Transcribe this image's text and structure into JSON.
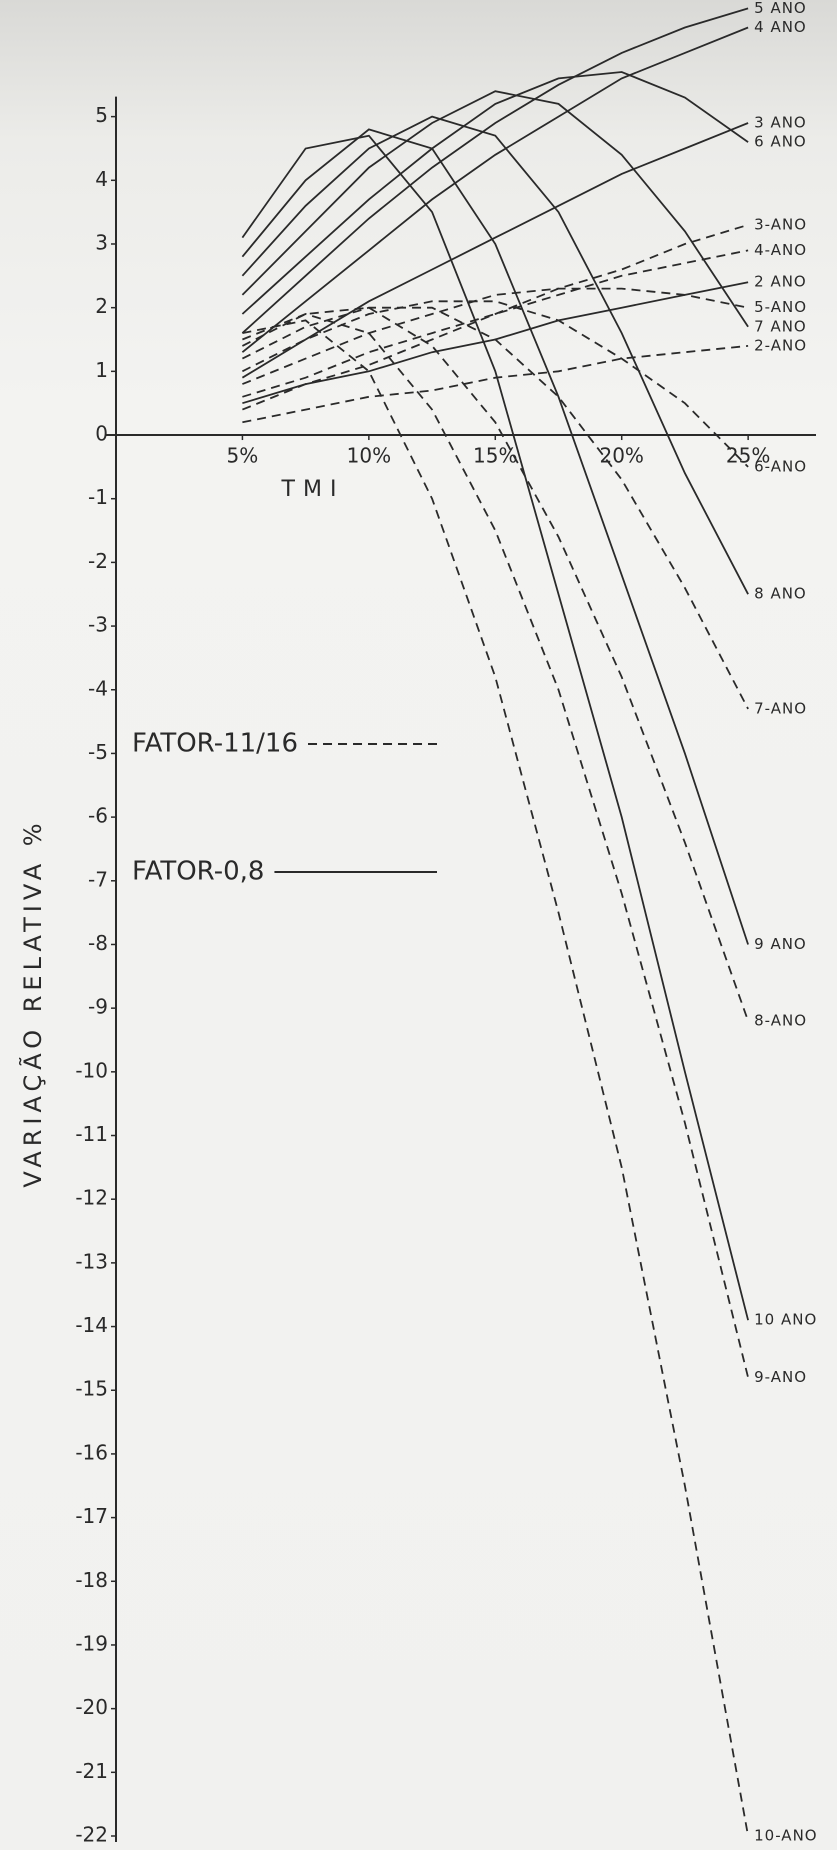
{
  "chart_data": {
    "type": "line",
    "xlabel": "TMI",
    "ylabel": "VARIAÇÃO RELATIVA %",
    "color": "#2a2a2a",
    "xlim": [
      0,
      28
    ],
    "ylim": [
      -22,
      6.8
    ],
    "xticks": [
      {
        "value": 5,
        "label": "5%"
      },
      {
        "value": 10,
        "label": "10%"
      },
      {
        "value": 15,
        "label": "15%"
      },
      {
        "value": 20,
        "label": "20%"
      },
      {
        "value": 25,
        "label": "25%"
      }
    ],
    "yticks": [
      5,
      4,
      3,
      2,
      1,
      0,
      -1,
      -2,
      -3,
      -4,
      -5,
      -6,
      -7,
      -8,
      -9,
      -10,
      -11,
      -12,
      -13,
      -14,
      -15,
      -16,
      -17,
      -18,
      -19,
      -20,
      -21,
      -22
    ],
    "legend": [
      {
        "label": "FATOR-11/16",
        "style": "dashed"
      },
      {
        "label": "FATOR-0,8",
        "style": "solid"
      }
    ],
    "x": [
      5,
      7.5,
      10,
      12.5,
      15,
      17.5,
      20,
      22.5,
      25
    ],
    "series": [
      {
        "name": "5 ANO",
        "style": "solid",
        "values": [
          1.6,
          2.5,
          3.4,
          4.2,
          4.9,
          5.5,
          6.0,
          6.4,
          6.7
        ]
      },
      {
        "name": "4 ANO",
        "style": "solid",
        "values": [
          1.3,
          2.1,
          2.9,
          3.7,
          4.4,
          5.0,
          5.6,
          6.0,
          6.4
        ]
      },
      {
        "name": "3 ANO",
        "style": "solid",
        "values": [
          0.9,
          1.5,
          2.1,
          2.6,
          3.1,
          3.6,
          4.1,
          4.5,
          4.9
        ]
      },
      {
        "name": "6 ANO",
        "style": "solid",
        "values": [
          1.9,
          2.8,
          3.7,
          4.5,
          5.2,
          5.6,
          5.7,
          5.3,
          4.6
        ]
      },
      {
        "name": "2 ANO",
        "style": "solid",
        "values": [
          0.5,
          0.8,
          1.0,
          1.3,
          1.5,
          1.8,
          2.0,
          2.2,
          2.4
        ]
      },
      {
        "name": "7 ANO",
        "style": "solid",
        "values": [
          2.2,
          3.2,
          4.2,
          4.9,
          5.4,
          5.2,
          4.4,
          3.2,
          1.7
        ]
      },
      {
        "name": "8 ANO",
        "style": "solid",
        "values": [
          2.5,
          3.6,
          4.5,
          5.0,
          4.7,
          3.5,
          1.6,
          -0.6,
          -2.5
        ]
      },
      {
        "name": "9 ANO",
        "style": "solid",
        "values": [
          2.8,
          4.0,
          4.8,
          4.5,
          3.0,
          0.6,
          -2.2,
          -5.0,
          -8.0
        ]
      },
      {
        "name": "10 ANO",
        "style": "solid",
        "values": [
          3.1,
          4.5,
          4.7,
          3.5,
          1.0,
          -2.5,
          -6.0,
          -10.0,
          -13.9
        ]
      },
      {
        "name": "3-ANO",
        "style": "dashed",
        "values": [
          0.4,
          0.8,
          1.1,
          1.5,
          1.9,
          2.3,
          2.6,
          3.0,
          3.3
        ]
      },
      {
        "name": "4-ANO",
        "style": "dashed",
        "values": [
          0.6,
          0.9,
          1.3,
          1.6,
          1.9,
          2.2,
          2.5,
          2.7,
          2.9
        ]
      },
      {
        "name": "5-ANO",
        "style": "dashed",
        "values": [
          0.8,
          1.2,
          1.6,
          1.9,
          2.2,
          2.3,
          2.3,
          2.2,
          2.0
        ]
      },
      {
        "name": "2-ANO",
        "style": "dashed",
        "values": [
          0.2,
          0.4,
          0.6,
          0.7,
          0.9,
          1.0,
          1.2,
          1.3,
          1.4
        ]
      },
      {
        "name": "6-ANO",
        "style": "dashed",
        "values": [
          1.0,
          1.5,
          1.9,
          2.1,
          2.1,
          1.8,
          1.2,
          0.5,
          -0.5
        ]
      },
      {
        "name": "7-ANO",
        "style": "dashed",
        "values": [
          1.2,
          1.7,
          2.0,
          2.0,
          1.5,
          0.6,
          -0.7,
          -2.4,
          -4.3
        ]
      },
      {
        "name": "8-ANO",
        "style": "dashed",
        "values": [
          1.4,
          1.9,
          2.0,
          1.4,
          0.2,
          -1.6,
          -3.8,
          -6.4,
          -9.2
        ]
      },
      {
        "name": "9-ANO",
        "style": "dashed",
        "values": [
          1.5,
          1.9,
          1.6,
          0.4,
          -1.5,
          -4.0,
          -7.2,
          -10.8,
          -14.8
        ]
      },
      {
        "name": "10-ANO",
        "style": "dashed",
        "values": [
          1.6,
          1.8,
          1.0,
          -1.0,
          -3.8,
          -7.5,
          -11.5,
          -16.5,
          -22
        ]
      }
    ]
  }
}
